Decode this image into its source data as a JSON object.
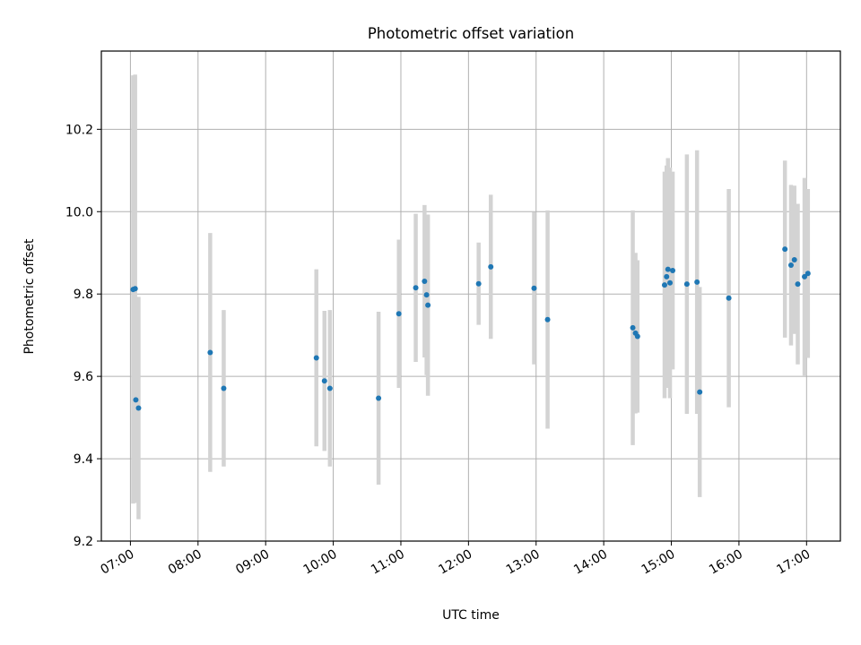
{
  "chart_data": {
    "type": "scatter",
    "title": "Photometric offset variation",
    "xlabel": "UTC time",
    "ylabel": "Photometric offset",
    "x_unit": "hours UTC",
    "xlim": [
      6.57,
      17.5
    ],
    "ylim": [
      9.2,
      10.39
    ],
    "x_ticks": [
      {
        "value": 7,
        "label": "07:00"
      },
      {
        "value": 8,
        "label": "08:00"
      },
      {
        "value": 9,
        "label": "09:00"
      },
      {
        "value": 10,
        "label": "10:00"
      },
      {
        "value": 11,
        "label": "11:00"
      },
      {
        "value": 12,
        "label": "12:00"
      },
      {
        "value": 13,
        "label": "13:00"
      },
      {
        "value": 14,
        "label": "14:00"
      },
      {
        "value": 15,
        "label": "15:00"
      },
      {
        "value": 16,
        "label": "16:00"
      },
      {
        "value": 17,
        "label": "17:00"
      }
    ],
    "y_ticks": [
      {
        "value": 9.2,
        "label": "9.2"
      },
      {
        "value": 9.4,
        "label": "9.4"
      },
      {
        "value": 9.6,
        "label": "9.6"
      },
      {
        "value": 9.8,
        "label": "9.8"
      },
      {
        "value": 10.0,
        "label": "10.0"
      },
      {
        "value": 10.2,
        "label": "10.2"
      }
    ],
    "grid": true,
    "colors": {
      "point": "#1f77b4",
      "errorbar": "#d3d3d3",
      "grid": "#b0b0b0",
      "axes": "#000000"
    },
    "points": [
      {
        "x": 7.04,
        "y": 9.811,
        "err": 0.52
      },
      {
        "x": 7.07,
        "y": 9.813,
        "err": 0.52
      },
      {
        "x": 7.08,
        "y": 9.543,
        "err": 0.25
      },
      {
        "x": 7.12,
        "y": 9.523,
        "err": 0.27
      },
      {
        "x": 8.18,
        "y": 9.658,
        "err": 0.29
      },
      {
        "x": 8.38,
        "y": 9.571,
        "err": 0.19
      },
      {
        "x": 9.75,
        "y": 9.645,
        "err": 0.215
      },
      {
        "x": 9.87,
        "y": 9.589,
        "err": 0.17
      },
      {
        "x": 9.95,
        "y": 9.571,
        "err": 0.19
      },
      {
        "x": 10.67,
        "y": 9.547,
        "err": 0.21
      },
      {
        "x": 10.97,
        "y": 9.752,
        "err": 0.18
      },
      {
        "x": 11.22,
        "y": 9.815,
        "err": 0.18
      },
      {
        "x": 11.35,
        "y": 9.831,
        "err": 0.185
      },
      {
        "x": 11.38,
        "y": 9.798,
        "err": 0.195
      },
      {
        "x": 11.4,
        "y": 9.773,
        "err": 0.22
      },
      {
        "x": 12.15,
        "y": 9.825,
        "err": 0.1
      },
      {
        "x": 12.33,
        "y": 9.866,
        "err": 0.175
      },
      {
        "x": 12.97,
        "y": 9.814,
        "err": 0.185
      },
      {
        "x": 13.17,
        "y": 9.738,
        "err": 0.265
      },
      {
        "x": 14.43,
        "y": 9.718,
        "err": 0.285
      },
      {
        "x": 14.47,
        "y": 9.705,
        "err": 0.195
      },
      {
        "x": 14.5,
        "y": 9.697,
        "err": 0.185
      },
      {
        "x": 14.9,
        "y": 9.822,
        "err": 0.275
      },
      {
        "x": 14.93,
        "y": 9.842,
        "err": 0.27
      },
      {
        "x": 14.95,
        "y": 9.86,
        "err": 0.27
      },
      {
        "x": 14.98,
        "y": 9.827,
        "err": 0.28
      },
      {
        "x": 15.02,
        "y": 9.857,
        "err": 0.24
      },
      {
        "x": 15.23,
        "y": 9.824,
        "err": 0.315
      },
      {
        "x": 15.38,
        "y": 9.829,
        "err": 0.32
      },
      {
        "x": 15.42,
        "y": 9.562,
        "err": 0.255
      },
      {
        "x": 15.85,
        "y": 9.79,
        "err": 0.265
      },
      {
        "x": 16.68,
        "y": 9.909,
        "err": 0.215
      },
      {
        "x": 16.77,
        "y": 9.87,
        "err": 0.195
      },
      {
        "x": 16.82,
        "y": 9.883,
        "err": 0.18
      },
      {
        "x": 16.87,
        "y": 9.824,
        "err": 0.195
      },
      {
        "x": 16.97,
        "y": 9.842,
        "err": 0.24
      },
      {
        "x": 17.02,
        "y": 9.85,
        "err": 0.205
      }
    ]
  }
}
